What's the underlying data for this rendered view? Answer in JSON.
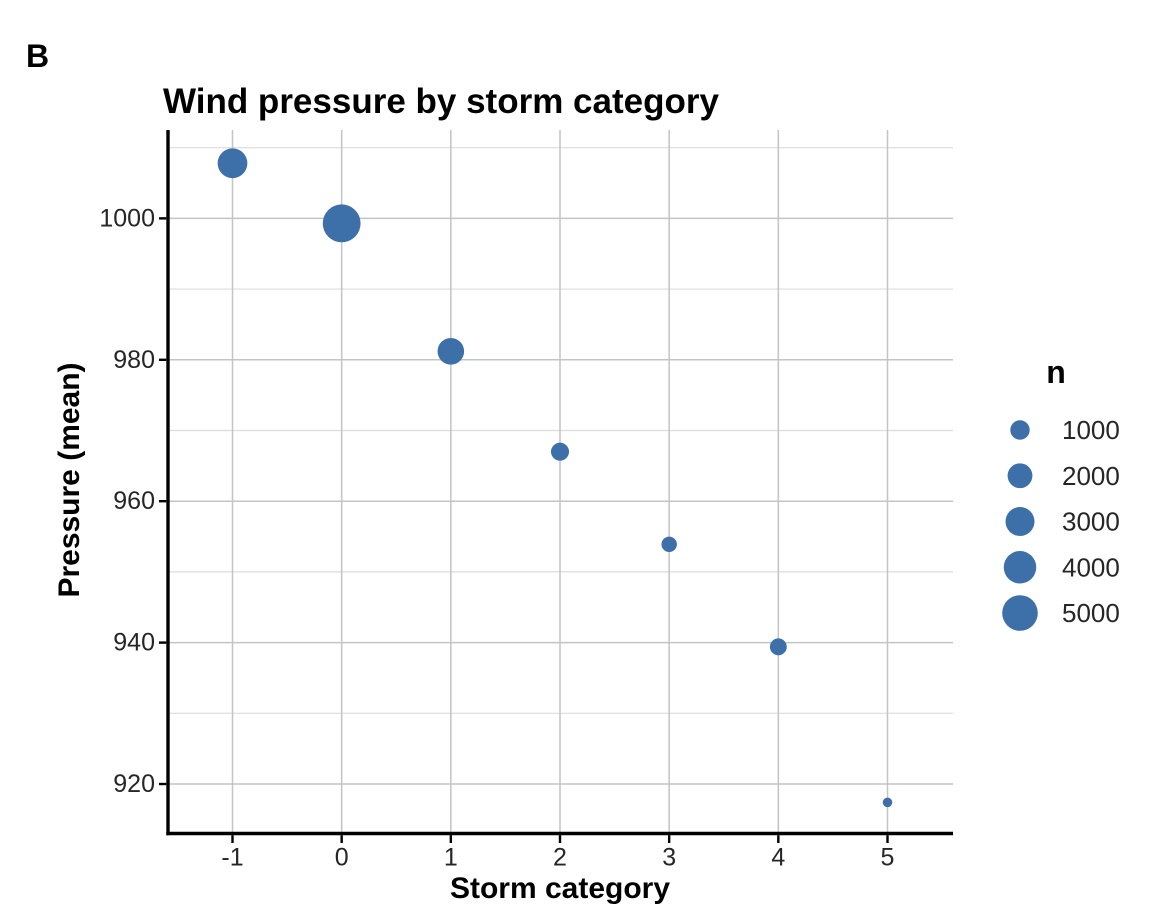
{
  "chart_data": {
    "type": "scatter",
    "subtype": "bubble",
    "panel_label": "B",
    "title": "Wind pressure by storm category",
    "xlabel": "Storm category",
    "ylabel": "Pressure (mean)",
    "categories": [
      "-1",
      "0",
      "1",
      "2",
      "3",
      "4",
      "5"
    ],
    "points": [
      {
        "category": "-1",
        "pressure": 1007.8,
        "n": 3200
      },
      {
        "category": "0",
        "pressure": 999.3,
        "n": 5800
      },
      {
        "category": "1",
        "pressure": 981.2,
        "n": 2400
      },
      {
        "category": "2",
        "pressure": 967.0,
        "n": 800
      },
      {
        "category": "3",
        "pressure": 953.9,
        "n": 480
      },
      {
        "category": "4",
        "pressure": 939.4,
        "n": 650
      },
      {
        "category": "5",
        "pressure": 917.4,
        "n": 60
      }
    ],
    "y_ticks": [
      1000,
      980,
      960,
      940,
      920
    ],
    "y_minor": [
      1010,
      990,
      970,
      950,
      930
    ],
    "ylim": [
      913,
      1012.5
    ],
    "grid": true,
    "legend": {
      "title": "n",
      "entries": [
        1000,
        2000,
        3000,
        4000,
        5000
      ],
      "position": "right"
    },
    "colors": {
      "point": "#3D6FA8",
      "grid_major": "#C4C4C4",
      "grid_minor": "#DCDCDC",
      "axis": "#000000",
      "tick_text": "#262626",
      "title_text": "#000000"
    }
  }
}
